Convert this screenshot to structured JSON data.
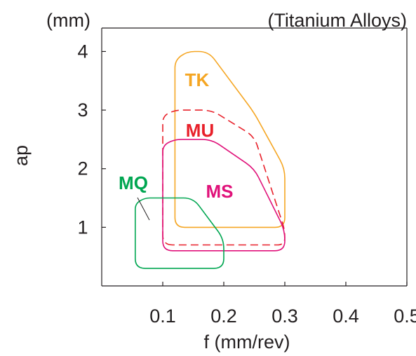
{
  "chart_data": {
    "type": "area",
    "unit_label": "(mm)",
    "title": "(Titanium Alloys)",
    "xlabel": "f (mm/rev)",
    "ylabel": "ap",
    "xlim": [
      0,
      0.5
    ],
    "ylim": [
      0,
      4.4
    ],
    "x_ticks": [
      "0.1",
      "0.2",
      "0.3",
      "0.4",
      "0.5"
    ],
    "y_ticks": [
      "1",
      "2",
      "3",
      "4"
    ],
    "grid": false,
    "series": [
      {
        "name": "TK",
        "color": "#f5a623",
        "dashed": false,
        "points": [
          [
            0.12,
            1.0
          ],
          [
            0.12,
            3.85
          ],
          [
            0.14,
            4.0
          ],
          [
            0.175,
            4.0
          ],
          [
            0.25,
            2.95
          ],
          [
            0.3,
            2.0
          ],
          [
            0.3,
            1.0
          ]
        ]
      },
      {
        "name": "MU",
        "color": "#e8202a",
        "dashed": true,
        "points": [
          [
            0.1,
            0.7
          ],
          [
            0.1,
            2.9
          ],
          [
            0.12,
            3.0
          ],
          [
            0.18,
            3.0
          ],
          [
            0.25,
            2.55
          ],
          [
            0.3,
            0.95
          ],
          [
            0.3,
            0.7
          ]
        ]
      },
      {
        "name": "MS",
        "color": "#e0127a",
        "dashed": false,
        "points": [
          [
            0.1,
            0.6
          ],
          [
            0.1,
            2.4
          ],
          [
            0.12,
            2.5
          ],
          [
            0.18,
            2.5
          ],
          [
            0.25,
            2.0
          ],
          [
            0.3,
            0.95
          ],
          [
            0.3,
            0.6
          ]
        ]
      },
      {
        "name": "MQ",
        "color": "#00a651",
        "dashed": false,
        "points": [
          [
            0.055,
            0.3
          ],
          [
            0.055,
            1.4
          ],
          [
            0.07,
            1.5
          ],
          [
            0.15,
            1.5
          ],
          [
            0.2,
            0.8
          ],
          [
            0.2,
            0.3
          ]
        ]
      }
    ]
  },
  "colors": {
    "axis": "#231f20",
    "TK": "#f5a623",
    "MU": "#e8202a",
    "MS": "#e0127a",
    "MQ": "#00a651"
  }
}
